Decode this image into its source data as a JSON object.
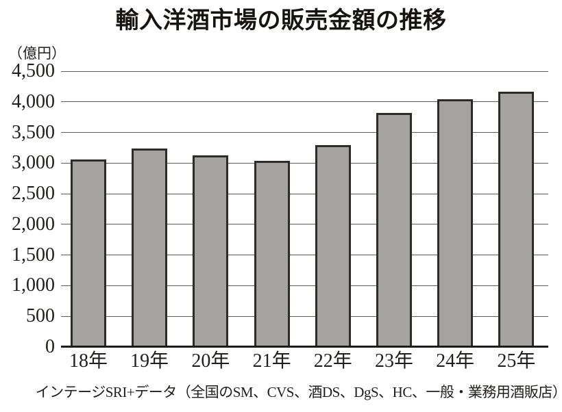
{
  "figure": {
    "title": "輸入洋酒市場の販売金額の推移",
    "y_axis_unit": "（億円）",
    "source_note": "インテージSRI+データ（全国のSM、CVS、酒DS、DgS、HC、一般・業務用酒販店）"
  },
  "chart_data": {
    "type": "bar",
    "title": "輸入洋酒市場の販売金額の推移",
    "categories": [
      "18年",
      "19年",
      "20年",
      "21年",
      "22年",
      "23年",
      "24年",
      "25年"
    ],
    "values": [
      3060,
      3240,
      3130,
      3040,
      3290,
      3820,
      4040,
      4170
    ],
    "xlabel": "",
    "ylabel": "（億円）",
    "ylim": [
      0,
      4500
    ],
    "y_ticks": [
      0,
      500,
      1000,
      1500,
      2000,
      2500,
      3000,
      3500,
      4000,
      4500
    ],
    "grid": true,
    "legend": "none",
    "bar_color": "#a4a3a1",
    "bar_border_color": "#2e2a28",
    "gridline_color": "#5f5a56",
    "axis_color": "#1d1a18",
    "source_note": "インテージSRI+データ（全国のSM、CVS、酒DS、DgS、HC、一般・業務用酒販店）"
  }
}
